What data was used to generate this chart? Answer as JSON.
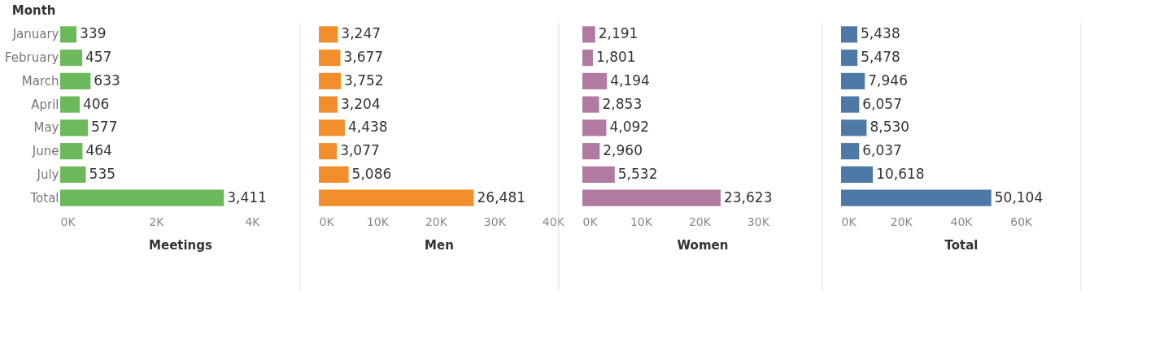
{
  "chart_data": [
    {
      "type": "bar",
      "orientation": "horizontal",
      "ylabel": "Month",
      "xlabel": "Meetings",
      "categories": [
        "January",
        "February",
        "March",
        "April",
        "May",
        "June",
        "July",
        "Total"
      ],
      "values": [
        339,
        457,
        633,
        406,
        577,
        464,
        535,
        3411
      ],
      "value_labels": [
        "339",
        "457",
        "633",
        "406",
        "577",
        "464",
        "535",
        "3,411"
      ],
      "color": "#6cb95b",
      "xlim": [
        0,
        5000
      ],
      "xticks": [
        {
          "value": 0,
          "label": "0K"
        },
        {
          "value": 2000,
          "label": "2K"
        },
        {
          "value": 4000,
          "label": "4K"
        }
      ]
    },
    {
      "type": "bar",
      "orientation": "horizontal",
      "xlabel": "Men",
      "categories": [
        null,
        null,
        null,
        null,
        null,
        null,
        null,
        null
      ],
      "values": [
        3247,
        3677,
        3752,
        3204,
        4438,
        3077,
        5086,
        26481
      ],
      "value_labels": [
        "3,247",
        "3,677",
        "3,752",
        "3,204",
        "4,438",
        "3,077",
        "5,086",
        "26,481"
      ],
      "color": "#f28e2b",
      "xlim": [
        0,
        41000
      ],
      "xticks": [
        {
          "value": 0,
          "label": "0K"
        },
        {
          "value": 10000,
          "label": "10K"
        },
        {
          "value": 20000,
          "label": "20K"
        },
        {
          "value": 30000,
          "label": "30K"
        },
        {
          "value": 40000,
          "label": "40K"
        }
      ]
    },
    {
      "type": "bar",
      "orientation": "horizontal",
      "xlabel": "Women",
      "categories": [
        null,
        null,
        null,
        null,
        null,
        null,
        null,
        null
      ],
      "values": [
        2191,
        1801,
        4194,
        2853,
        4092,
        2960,
        5532,
        23623
      ],
      "value_labels": [
        "2,191",
        "1,801",
        "4,194",
        "2,853",
        "4,092",
        "2,960",
        "5,532",
        "23,623"
      ],
      "color": "#b07aa1",
      "xlim": [
        0,
        41000
      ],
      "xticks": [
        {
          "value": 0,
          "label": "0K"
        },
        {
          "value": 10000,
          "label": "10K"
        },
        {
          "value": 20000,
          "label": "20K"
        },
        {
          "value": 30000,
          "label": "30K"
        }
      ]
    },
    {
      "type": "bar",
      "orientation": "horizontal",
      "xlabel": "Total",
      "categories": [
        null,
        null,
        null,
        null,
        null,
        null,
        null,
        null
      ],
      "values": [
        5438,
        5478,
        7946,
        6057,
        8530,
        6037,
        10618,
        50104
      ],
      "value_labels": [
        "5,438",
        "5,478",
        "7,946",
        "6,057",
        "8,530",
        "6,037",
        "10,618",
        "50,104"
      ],
      "color": "#4e79a7",
      "xlim": [
        0,
        80000
      ],
      "xticks": [
        {
          "value": 0,
          "label": "0K"
        },
        {
          "value": 20000,
          "label": "20K"
        },
        {
          "value": 40000,
          "label": "40K"
        },
        {
          "value": 60000,
          "label": "60K"
        }
      ]
    }
  ]
}
